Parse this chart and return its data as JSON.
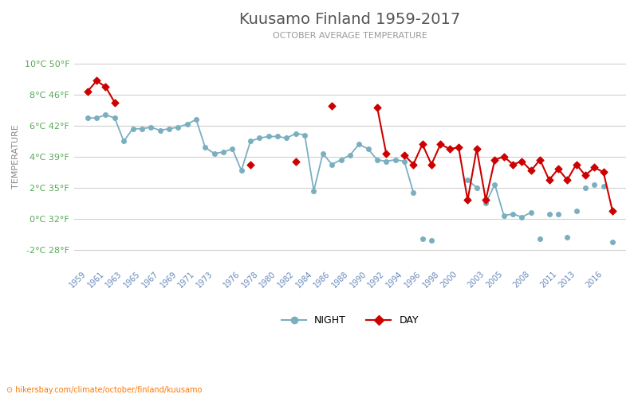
{
  "title": "Kuusamo Finland 1959-2017",
  "subtitle": "OCTOBER AVERAGE TEMPERATURE",
  "ylabel": "TEMPERATURE",
  "ylim": [
    -3,
    11
  ],
  "yticks_celsius": [
    -2,
    0,
    2,
    4,
    6,
    8,
    10
  ],
  "yticks_fahrenheit": [
    28,
    32,
    35,
    39,
    42,
    46,
    50
  ],
  "bg_color": "#ffffff",
  "grid_color": "#d0d0d0",
  "night_color": "#7aafc0",
  "day_color": "#cc0000",
  "night_label": "NIGHT",
  "day_label": "DAY",
  "title_color": "#555555",
  "subtitle_color": "#999999",
  "ylabel_color": "#888888",
  "ytick_color": "#55aa55",
  "xtick_color": "#6688bb",
  "watermark": "hikersbay.com/climate/october/finland/kuusamo",
  "xtick_years": [
    1959,
    1961,
    1963,
    1965,
    1967,
    1969,
    1971,
    1973,
    1976,
    1978,
    1980,
    1982,
    1984,
    1986,
    1988,
    1990,
    1992,
    1994,
    1996,
    1998,
    2000,
    2003,
    2005,
    2008,
    2011,
    2013,
    2016
  ],
  "night_connected": {
    "segment1": [
      1959,
      1960,
      1961,
      1962,
      1963,
      1964,
      1965,
      1966,
      1967,
      1968,
      1969,
      1970,
      1971,
      1972,
      1973,
      1974,
      1975,
      1976,
      1977,
      1978,
      1979,
      1980,
      1981,
      1982,
      1983,
      1984,
      1985,
      1986,
      1987,
      1988,
      1989,
      1990,
      1991,
      1992,
      1993,
      1994,
      1995
    ]
  },
  "night_isolated": [
    1996,
    1997,
    2001,
    2002,
    2003,
    2004,
    2009,
    2010,
    2011,
    2012,
    2013,
    2014,
    2015,
    2016,
    2017
  ],
  "night_seg2": [
    2003,
    2004,
    2005,
    2006,
    2007,
    2008
  ],
  "night_data": {
    "1959": 6.5,
    "1960": 6.5,
    "1961": 6.7,
    "1962": 6.5,
    "1963": 5.0,
    "1964": 5.8,
    "1965": 5.8,
    "1966": 5.9,
    "1967": 5.7,
    "1968": 5.8,
    "1969": 5.9,
    "1970": 6.1,
    "1971": 6.4,
    "1972": 4.6,
    "1973": 4.2,
    "1974": 4.3,
    "1975": 4.5,
    "1976": 3.1,
    "1977": 5.0,
    "1978": 5.2,
    "1979": 5.3,
    "1980": 5.3,
    "1981": 5.2,
    "1982": 5.5,
    "1983": 5.4,
    "1984": 1.8,
    "1985": 4.2,
    "1986": 3.5,
    "1987": 3.8,
    "1988": 4.1,
    "1989": 4.8,
    "1990": 4.5,
    "1991": 3.8,
    "1992": 3.7,
    "1993": 3.8,
    "1994": 3.7,
    "1995": 1.7,
    "1996": -1.3,
    "1997": -1.4,
    "2001": 2.5,
    "2002": 2.0,
    "2003": 1.0,
    "2004": 2.2,
    "2005": 0.2,
    "2006": 0.3,
    "2007": 0.1,
    "2008": 0.4,
    "2009": -1.3,
    "2010": 0.3,
    "2011": 0.3,
    "2012": -1.2,
    "2013": 0.5,
    "2014": 2.0,
    "2015": 2.2,
    "2016": 2.1,
    "2017": -1.5
  },
  "day_seg1": [
    1959,
    1960,
    1961,
    1962
  ],
  "day_isolated": [
    1977,
    1982
  ],
  "day_seg2": [
    1991,
    1992
  ],
  "day_seg3_start": 1994,
  "day_data": {
    "1959": 8.2,
    "1960": 8.9,
    "1961": 8.5,
    "1962": 7.5,
    "1977": 3.5,
    "1982": 3.7,
    "1986": 7.3,
    "1991": 7.2,
    "1992": 4.2,
    "1994": 4.1,
    "1995": 3.5,
    "1996": 4.8,
    "1997": 3.5,
    "1998": 4.8,
    "1999": 4.5,
    "2000": 4.6,
    "2001": 1.2,
    "2002": 4.5,
    "2003": 1.2,
    "2004": 3.8,
    "2005": 4.0,
    "2006": 3.5,
    "2007": 3.7,
    "2008": 3.1,
    "2009": 3.8,
    "2010": 2.5,
    "2011": 3.2,
    "2012": 2.5,
    "2013": 3.5,
    "2014": 2.8,
    "2015": 3.3,
    "2016": 3.0,
    "2017": 0.5
  }
}
